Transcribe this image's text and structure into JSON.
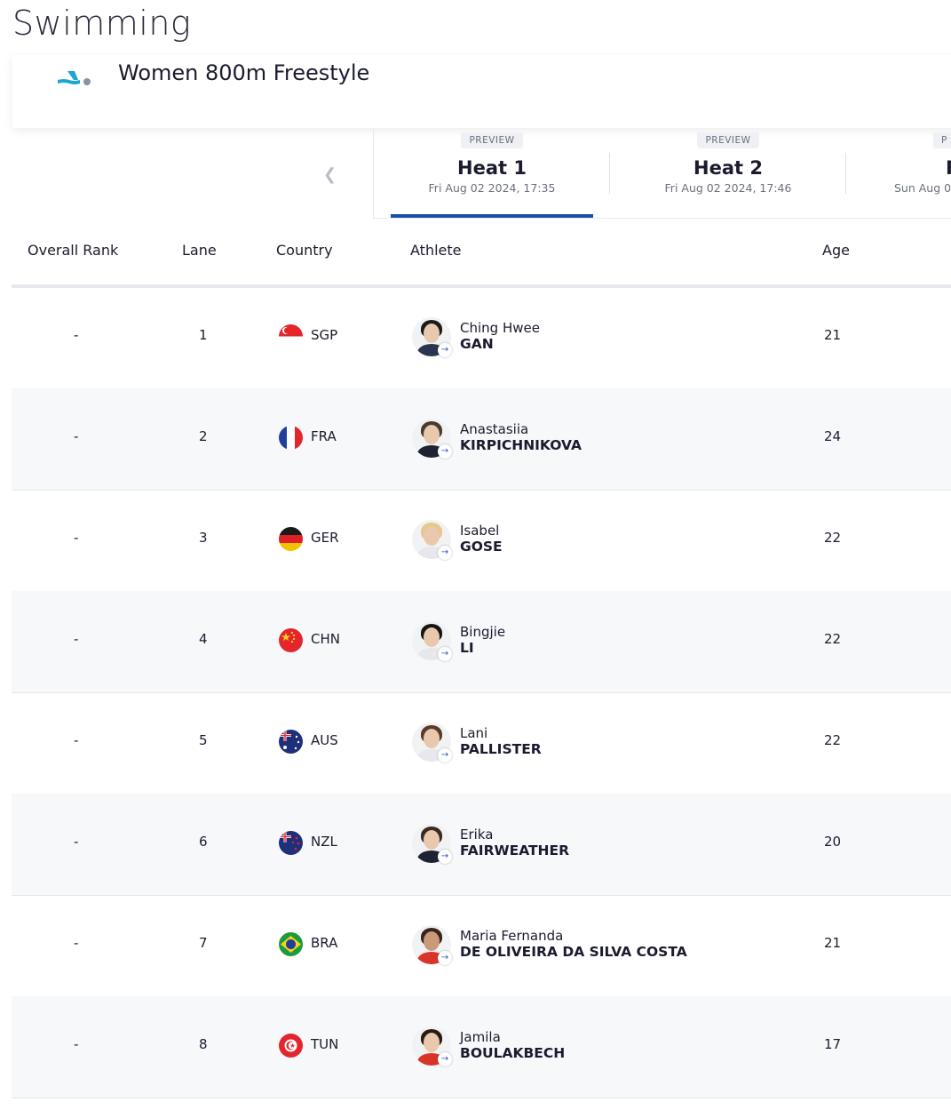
{
  "header": {
    "sport": "Swimming",
    "event": "Women 800m Freestyle",
    "event_icon": "swimming-pictogram-icon"
  },
  "tabs": [
    {
      "badge": "PREVIEW",
      "name": "Heat 1",
      "date": "Fri Aug 02 2024, 17:35"
    },
    {
      "badge": "PREVIEW",
      "name": "Heat 2",
      "date": "Fri Aug 02 2024, 17:46"
    },
    {
      "badge": "P",
      "name": "F",
      "date": "Sun Aug 0"
    }
  ],
  "columns": {
    "rank": "Overall Rank",
    "lane": "Lane",
    "country": "Country",
    "athlete": "Athlete",
    "age": "Age"
  },
  "rows": [
    {
      "rank": "-",
      "lane": "1",
      "country": "SGP",
      "first": "Ching Hwee",
      "last": "GAN",
      "age": "21"
    },
    {
      "rank": "-",
      "lane": "2",
      "country": "FRA",
      "first": "Anastasiia",
      "last": "KIRPICHNIKOVA",
      "age": "24"
    },
    {
      "rank": "-",
      "lane": "3",
      "country": "GER",
      "first": "Isabel",
      "last": "GOSE",
      "age": "22"
    },
    {
      "rank": "-",
      "lane": "4",
      "country": "CHN",
      "first": "Bingjie",
      "last": "LI",
      "age": "22"
    },
    {
      "rank": "-",
      "lane": "5",
      "country": "AUS",
      "first": "Lani",
      "last": "PALLISTER",
      "age": "22"
    },
    {
      "rank": "-",
      "lane": "6",
      "country": "NZL",
      "first": "Erika",
      "last": "FAIRWEATHER",
      "age": "20"
    },
    {
      "rank": "-",
      "lane": "7",
      "country": "BRA",
      "first": "Maria Fernanda",
      "last": "DE OLIVEIRA DA SILVA COSTA",
      "age": "21"
    },
    {
      "rank": "-",
      "lane": "8",
      "country": "TUN",
      "first": "Jamila",
      "last": "BOULAKBECH",
      "age": "17"
    }
  ]
}
